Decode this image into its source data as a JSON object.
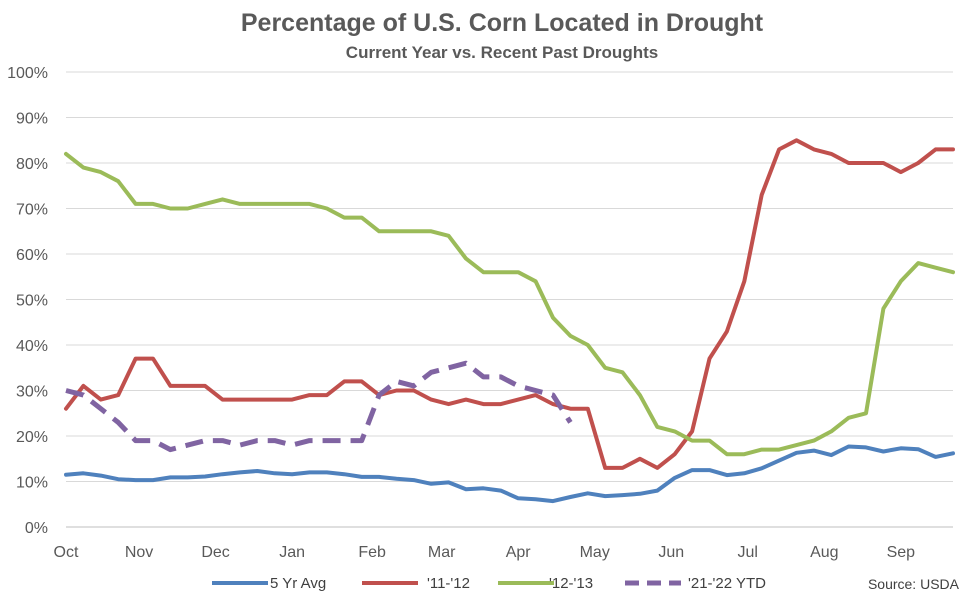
{
  "chart_data": {
    "type": "line",
    "title": "Percentage of U.S. Corn Located in Drought",
    "subtitle": "Current Year vs. Recent Past Droughts",
    "xlabel": "",
    "ylabel": "",
    "ylim": [
      0,
      100
    ],
    "y_ticks": [
      "0%",
      "10%",
      "20%",
      "30%",
      "40%",
      "50%",
      "60%",
      "70%",
      "80%",
      "90%",
      "100%"
    ],
    "month_ticks": [
      {
        "label": "Oct",
        "week": 0
      },
      {
        "label": "Nov",
        "week": 4.2
      },
      {
        "label": "Dec",
        "week": 8.6
      },
      {
        "label": "Jan",
        "week": 13
      },
      {
        "label": "Feb",
        "week": 17.6
      },
      {
        "label": "Mar",
        "week": 21.6
      },
      {
        "label": "Apr",
        "week": 26
      },
      {
        "label": "May",
        "week": 30.4
      },
      {
        "label": "Jun",
        "week": 34.8
      },
      {
        "label": "Jul",
        "week": 39.2
      },
      {
        "label": "Aug",
        "week": 43.6
      },
      {
        "label": "Sep",
        "week": 48
      }
    ],
    "x_range": [
      0,
      51
    ],
    "grid": true,
    "legend_position": "bottom",
    "source": "Source: USDA",
    "series": [
      {
        "name": "5 Yr Avg",
        "color": "#4f81bd",
        "dash": false,
        "values": [
          11.5,
          11.8,
          11.3,
          10.5,
          10.3,
          10.3,
          10.9,
          10.9,
          11.1,
          11.6,
          12.0,
          12.3,
          11.8,
          11.6,
          12.0,
          12.0,
          11.6,
          11.0,
          11.0,
          10.6,
          10.3,
          9.5,
          9.8,
          8.3,
          8.5,
          8.0,
          6.3,
          6.1,
          5.7,
          6.6,
          7.4,
          6.8,
          7.0,
          7.3,
          8.0,
          10.8,
          12.5,
          12.5,
          11.4,
          11.8,
          12.9,
          14.6,
          16.3,
          16.8,
          15.8,
          17.7,
          17.5,
          16.6,
          17.3,
          17.1,
          15.4,
          16.2
        ]
      },
      {
        "name": "'11-'12",
        "color": "#c0504d",
        "dash": false,
        "values": [
          26,
          31,
          28,
          29,
          37,
          37,
          31,
          31,
          31,
          28,
          28,
          28,
          28,
          28,
          29,
          29,
          32,
          32,
          29,
          30,
          30,
          28,
          27,
          28,
          27,
          27,
          28,
          29,
          27,
          26,
          26,
          13,
          13,
          15,
          13,
          16,
          21,
          37,
          43,
          54,
          73,
          83,
          85,
          83,
          82,
          80,
          80,
          80,
          78,
          80,
          83,
          83
        ]
      },
      {
        "name": "'12-'13",
        "color": "#9bbb59",
        "dash": false,
        "values": [
          82,
          79,
          78,
          76,
          71,
          71,
          70,
          70,
          71,
          72,
          71,
          71,
          71,
          71,
          71,
          70,
          68,
          68,
          65,
          65,
          65,
          65,
          64,
          59,
          56,
          56,
          56,
          54,
          46,
          42,
          40,
          35,
          34,
          29,
          22,
          21,
          19,
          19,
          16,
          16,
          17,
          17,
          18,
          19,
          21,
          24,
          25,
          48,
          54,
          58,
          57,
          56
        ]
      },
      {
        "name": "'21-'22 YTD",
        "color": "#8064a2",
        "dash": true,
        "values": [
          30,
          29,
          26,
          23,
          19,
          19,
          17,
          18,
          19,
          19,
          18,
          19,
          19,
          18,
          19,
          19,
          19,
          19,
          29,
          32,
          31,
          34,
          35,
          36,
          33,
          33,
          31,
          30,
          29,
          23
        ]
      }
    ]
  }
}
